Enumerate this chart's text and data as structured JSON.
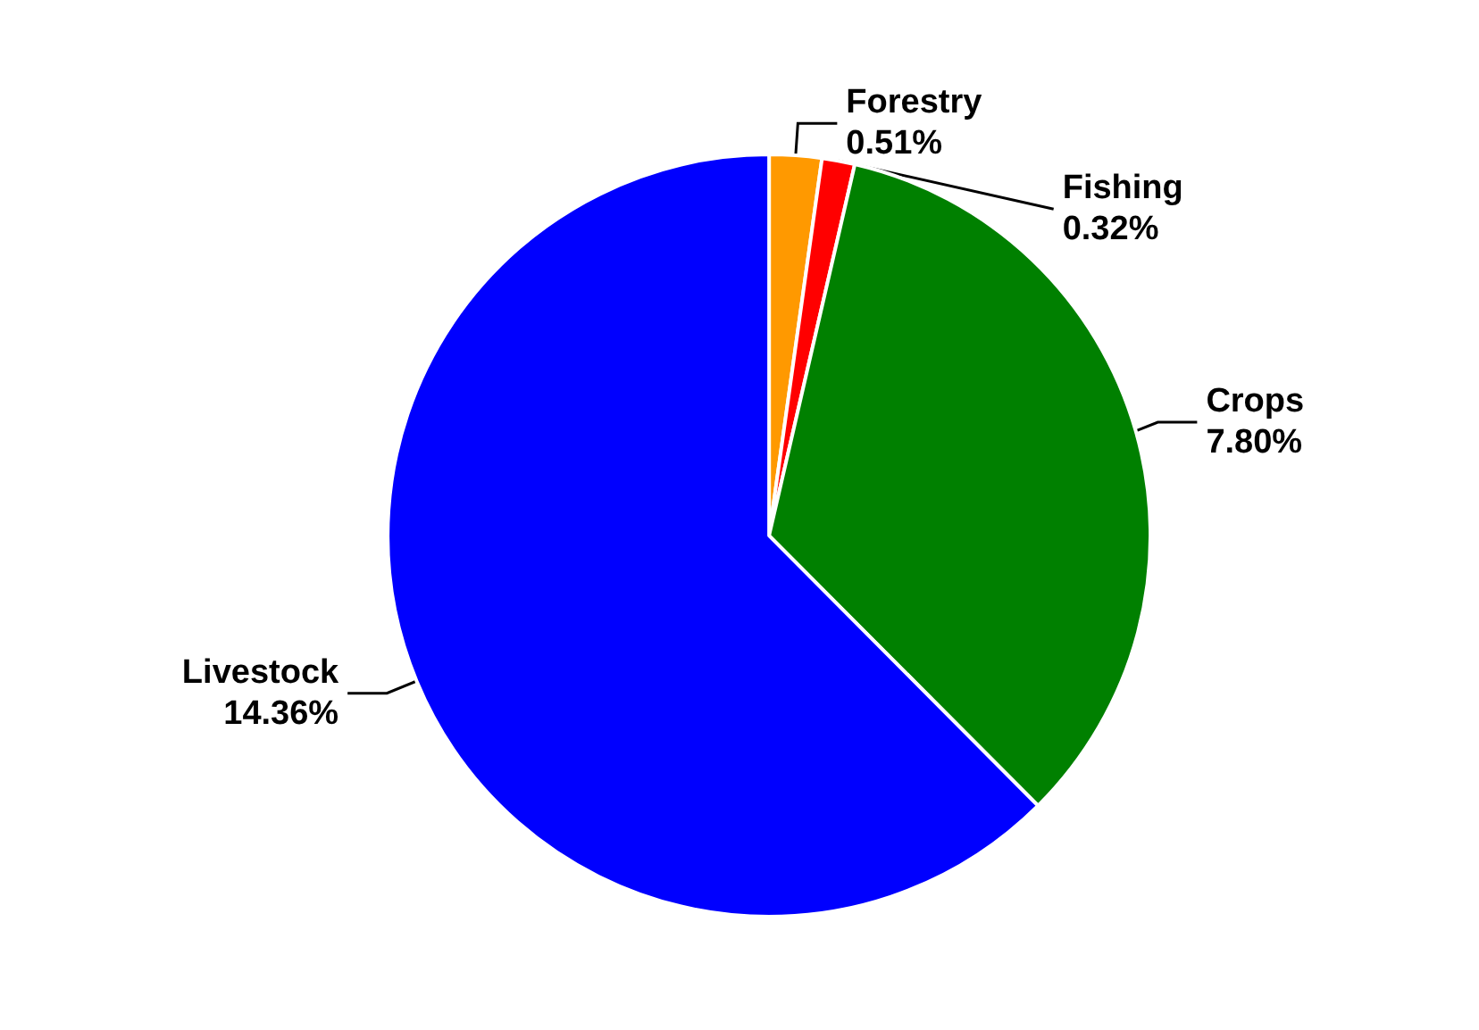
{
  "chart_data": {
    "type": "pie",
    "categories": [
      "Forestry",
      "Fishing",
      "Crops",
      "Livestock"
    ],
    "values": [
      0.51,
      0.32,
      7.8,
      14.36
    ],
    "value_labels": [
      "0.51%",
      "0.32%",
      "7.80%",
      "14.36%"
    ],
    "colors": [
      "#ff9900",
      "#ff0000",
      "#008000",
      "#0000ff"
    ]
  }
}
